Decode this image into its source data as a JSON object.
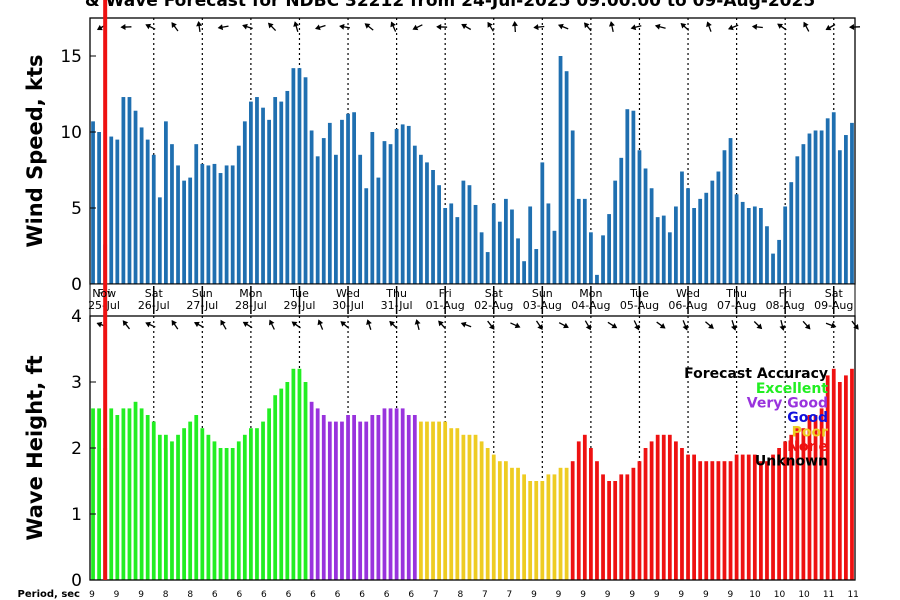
{
  "chart_data": [
    {
      "type": "bar",
      "title": "& Wave Forecast for NDBC 32212 from 24-Jul-2025 09:00:00 to 09-Aug-2025",
      "ylabel": "Wind Speed, kts",
      "ylim": [
        0,
        17.5
      ],
      "yticks": [
        "0",
        "5",
        "10",
        "15"
      ],
      "color": "#1f6fb0",
      "values": [
        10.7,
        10.0,
        2.6,
        9.7,
        9.5,
        12.3,
        12.3,
        11.4,
        10.3,
        9.5,
        8.5,
        5.7,
        10.7,
        9.2,
        7.8,
        6.8,
        7.0,
        9.2,
        7.9,
        7.8,
        7.9,
        7.3,
        7.8,
        7.8,
        9.1,
        10.7,
        12.0,
        12.3,
        11.6,
        10.8,
        12.3,
        12.0,
        12.7,
        14.2,
        14.2,
        13.6,
        10.1,
        8.4,
        9.6,
        10.6,
        8.5,
        10.8,
        11.2,
        11.3,
        8.5,
        6.3,
        10.0,
        7.0,
        9.4,
        9.2,
        10.2,
        10.5,
        10.4,
        9.1,
        8.5,
        8.0,
        7.5,
        6.5,
        5.0,
        5.3,
        4.4,
        6.8,
        6.5,
        5.2,
        3.4,
        2.1,
        5.3,
        4.1,
        5.6,
        4.9,
        3.0,
        1.5,
        5.1,
        2.3,
        8.0,
        5.3,
        3.5,
        15.0,
        14.0,
        10.1,
        5.6,
        5.6,
        3.4,
        0.6,
        3.2,
        4.6,
        6.8,
        8.3,
        11.5,
        11.4,
        8.8,
        7.6,
        6.3,
        4.4,
        4.5,
        3.4,
        5.1,
        7.4,
        6.3,
        5.0,
        5.6,
        6.0,
        6.8,
        7.4,
        8.8,
        9.6,
        5.9,
        5.4,
        5.0,
        5.1,
        5.0,
        3.8,
        2.0,
        2.9,
        5.1,
        6.7,
        8.4,
        9.2,
        9.9,
        10.1,
        10.1,
        10.9,
        11.3,
        8.8,
        9.8,
        10.6
      ],
      "direction_arrow_rows": 1
    },
    {
      "type": "bar",
      "ylabel": "Wave Height, ft",
      "ylim": [
        0,
        4
      ],
      "yticks": [
        "0",
        "1",
        "2",
        "3",
        "4"
      ],
      "values": [
        2.6,
        2.6,
        2.0,
        2.6,
        2.5,
        2.6,
        2.6,
        2.7,
        2.6,
        2.5,
        2.4,
        2.2,
        2.2,
        2.1,
        2.2,
        2.3,
        2.4,
        2.5,
        2.3,
        2.2,
        2.1,
        2.0,
        2.0,
        2.0,
        2.1,
        2.2,
        2.3,
        2.3,
        2.4,
        2.6,
        2.8,
        2.9,
        3.0,
        3.2,
        3.2,
        3.0,
        2.7,
        2.6,
        2.5,
        2.4,
        2.4,
        2.4,
        2.5,
        2.5,
        2.4,
        2.4,
        2.5,
        2.5,
        2.6,
        2.6,
        2.6,
        2.6,
        2.5,
        2.5,
        2.4,
        2.4,
        2.4,
        2.4,
        2.4,
        2.3,
        2.3,
        2.2,
        2.2,
        2.2,
        2.1,
        2.0,
        1.9,
        1.8,
        1.8,
        1.7,
        1.7,
        1.6,
        1.5,
        1.5,
        1.5,
        1.6,
        1.6,
        1.7,
        1.7,
        1.8,
        2.1,
        2.2,
        2.0,
        1.8,
        1.6,
        1.5,
        1.5,
        1.6,
        1.6,
        1.7,
        1.8,
        2.0,
        2.1,
        2.2,
        2.2,
        2.2,
        2.1,
        2.0,
        1.9,
        1.9,
        1.8,
        1.8,
        1.8,
        1.8,
        1.8,
        1.8,
        1.9,
        1.9,
        1.9,
        1.9,
        1.8,
        1.8,
        1.9,
        2.0,
        2.1,
        2.2,
        2.3,
        2.3,
        2.5,
        2.5,
        2.6,
        3.1,
        3.2,
        3.0,
        3.1,
        3.2
      ],
      "accuracy": [
        "excellent",
        "excellent",
        "excellent",
        "excellent",
        "excellent",
        "excellent",
        "excellent",
        "excellent",
        "excellent",
        "excellent",
        "excellent",
        "excellent",
        "excellent",
        "excellent",
        "excellent",
        "excellent",
        "excellent",
        "excellent",
        "excellent",
        "excellent",
        "excellent",
        "excellent",
        "excellent",
        "excellent",
        "excellent",
        "excellent",
        "excellent",
        "excellent",
        "excellent",
        "excellent",
        "excellent",
        "excellent",
        "excellent",
        "excellent",
        "excellent",
        "excellent",
        "very_good",
        "very_good",
        "very_good",
        "very_good",
        "very_good",
        "very_good",
        "very_good",
        "very_good",
        "very_good",
        "very_good",
        "very_good",
        "very_good",
        "very_good",
        "very_good",
        "very_good",
        "very_good",
        "very_good",
        "very_good",
        "poor",
        "poor",
        "poor",
        "poor",
        "poor",
        "poor",
        "poor",
        "poor",
        "poor",
        "poor",
        "poor",
        "poor",
        "poor",
        "poor",
        "poor",
        "poor",
        "poor",
        "poor",
        "poor",
        "poor",
        "poor",
        "poor",
        "poor",
        "poor",
        "poor",
        "none",
        "none",
        "none",
        "none",
        "none",
        "none",
        "none",
        "none",
        "none",
        "none",
        "none",
        "none",
        "none",
        "none",
        "none",
        "none",
        "none",
        "none",
        "none",
        "none",
        "none",
        "none",
        "none",
        "none",
        "none",
        "none",
        "none",
        "none",
        "none",
        "none",
        "none",
        "none",
        "none",
        "none",
        "none",
        "none",
        "none",
        "none",
        "none",
        "none",
        "none",
        "none",
        "none",
        "none",
        "none",
        "none",
        "none"
      ],
      "legend": {
        "title": "Forecast Accuracy",
        "items": [
          {
            "key": "excellent",
            "label": "Excellent",
            "color": "#22ee22"
          },
          {
            "key": "very_good",
            "label": "Very Good",
            "color": "#9933dd"
          },
          {
            "key": "good",
            "label": "Good",
            "color": "#1111dd"
          },
          {
            "key": "poor",
            "label": "Poor",
            "color": "#eecc22"
          },
          {
            "key": "none",
            "label": "None",
            "color": "#ee1111"
          },
          {
            "key": "unknown",
            "label": "Unknown",
            "color": "#000000"
          }
        ],
        "placement": "right"
      }
    }
  ],
  "date_labels": [
    {
      "day": "Fri",
      "date": "25-Jul"
    },
    {
      "day": "Sat",
      "date": "26-Jul"
    },
    {
      "day": "Sun",
      "date": "27-Jul"
    },
    {
      "day": "Mon",
      "date": "28-Jul"
    },
    {
      "day": "Tue",
      "date": "29-Jul"
    },
    {
      "day": "Wed",
      "date": "30-Jul"
    },
    {
      "day": "Thu",
      "date": "31-Jul"
    },
    {
      "day": "Fri",
      "date": "01-Aug"
    },
    {
      "day": "Sat",
      "date": "02-Aug"
    },
    {
      "day": "Sun",
      "date": "03-Aug"
    },
    {
      "day": "Mon",
      "date": "04-Aug"
    },
    {
      "day": "Tue",
      "date": "05-Aug"
    },
    {
      "day": "Wed",
      "date": "06-Aug"
    },
    {
      "day": "Thu",
      "date": "07-Aug"
    },
    {
      "day": "Fri",
      "date": "08-Aug"
    },
    {
      "day": "Sat",
      "date": "09-Aug"
    }
  ],
  "now_label": "Now",
  "period_label": "Period, sec",
  "periods": [
    "9",
    "9",
    "9",
    "8",
    "8",
    "6",
    "6",
    "6",
    "6",
    "6",
    "6",
    "6",
    "6",
    "6",
    "7",
    "8",
    "7",
    "7",
    "9",
    "9",
    "9",
    "9",
    "9",
    "9",
    "9",
    "9",
    "9",
    "10",
    "10",
    "10",
    "11",
    "11"
  ],
  "colors": {
    "wind_bar": "#1f6fb0",
    "now_line": "#ee1111"
  }
}
